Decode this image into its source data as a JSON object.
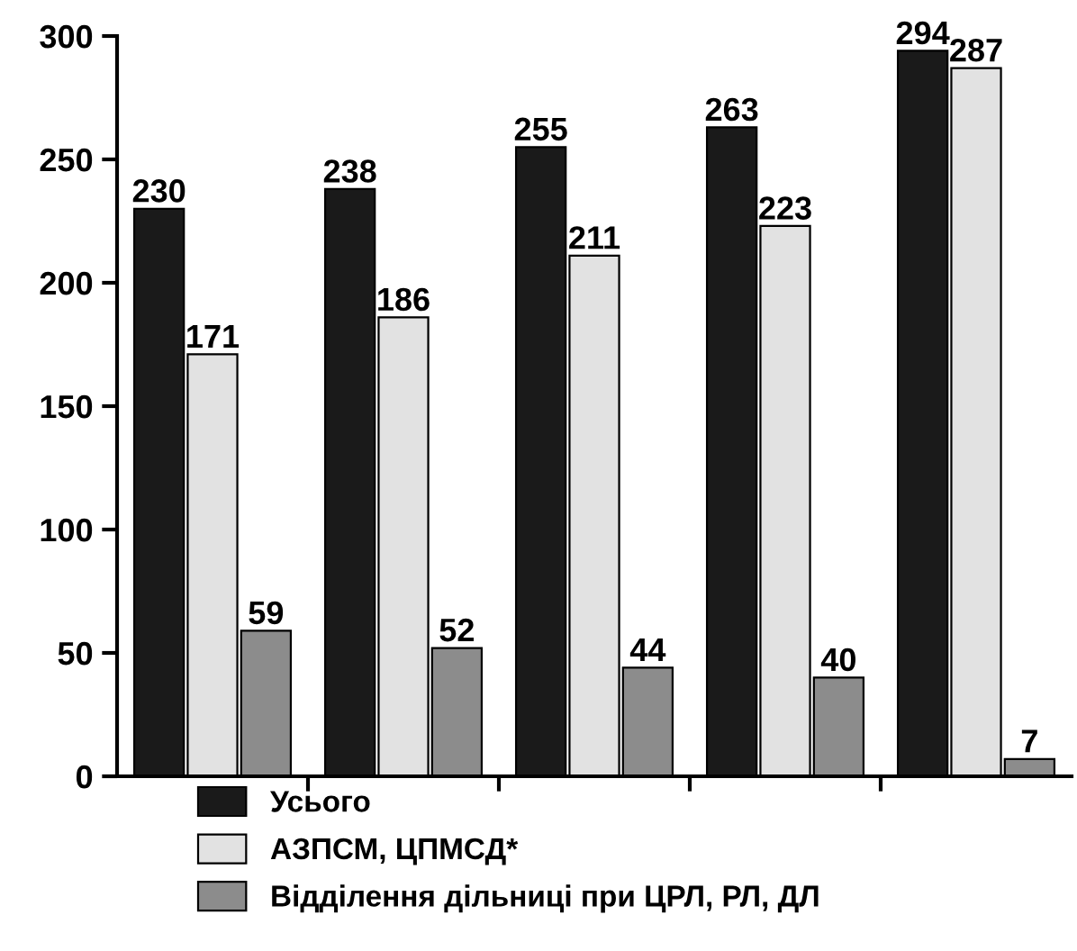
{
  "chart_data": {
    "type": "bar",
    "categories": [
      null,
      null,
      null,
      null,
      null
    ],
    "series": [
      {
        "name": "Усього",
        "color": "#1a1a1a",
        "values": [
          230,
          238,
          255,
          263,
          294
        ]
      },
      {
        "name": "АЗПСМ, ЦПМСД*",
        "color": "#e2e2e2",
        "values": [
          171,
          186,
          211,
          223,
          287
        ]
      },
      {
        "name": "Відділення дільниці при ЦРЛ, РЛ, ДЛ",
        "color": "#8c8c8c",
        "values": [
          59,
          52,
          44,
          40,
          7
        ]
      }
    ],
    "ylim": [
      0,
      300
    ],
    "yticks": [
      0,
      50,
      100,
      150,
      200,
      250,
      300
    ],
    "grid": false,
    "legend": "bottom",
    "data_labels": true
  }
}
